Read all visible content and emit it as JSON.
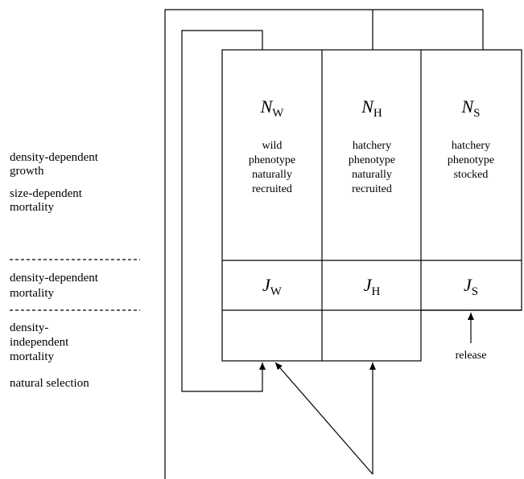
{
  "stages": [
    {
      "lines": [
        "density-dependent",
        "growth"
      ]
    },
    {
      "lines": [
        "size-dependent",
        "mortality"
      ]
    },
    {
      "lines": [
        "density-dependent",
        "mortality"
      ]
    },
    {
      "lines": [
        "density-",
        "independent",
        "mortality"
      ]
    },
    {
      "lines": [
        "natural selection"
      ]
    }
  ],
  "columns": [
    {
      "adult": {
        "symbol": "N",
        "sub": "W"
      },
      "description": [
        "wild",
        "phenotype",
        "naturally",
        "recruited"
      ],
      "juvenile": {
        "symbol": "J",
        "sub": "W"
      }
    },
    {
      "adult": {
        "symbol": "N",
        "sub": "H"
      },
      "description": [
        "hatchery",
        "phenotype",
        "naturally",
        "recruited"
      ],
      "juvenile": {
        "symbol": "J",
        "sub": "H"
      }
    },
    {
      "adult": {
        "symbol": "N",
        "sub": "S"
      },
      "description": [
        "hatchery",
        "phenotype",
        "stocked"
      ],
      "juvenile": {
        "symbol": "J",
        "sub": "S"
      }
    }
  ],
  "release_label": "release"
}
